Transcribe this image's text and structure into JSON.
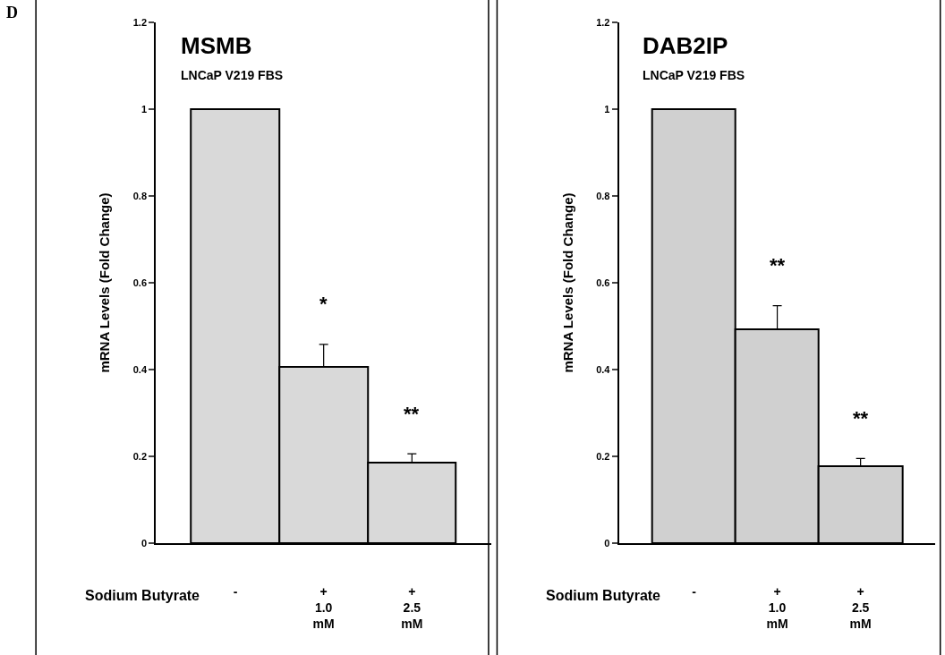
{
  "chart_data": [
    {
      "type": "bar",
      "title": "MSMB",
      "subtitle": "LNCaP V219 FBS",
      "ylabel": "mRNA Levels (Fold Change)",
      "categories": [
        "-",
        "+\n1.0\nmM",
        "+\n2.5\nmM"
      ],
      "values": [
        1,
        0.406,
        0.185
      ],
      "errors": [
        null,
        [
          0.406,
          0.458
        ],
        [
          0.185,
          0.206
        ]
      ],
      "color": "#d9d9d9",
      "ylim": [
        0,
        1.2
      ],
      "yticks": [
        0,
        0.2,
        0.4,
        0.6,
        0.8,
        1,
        1.2
      ],
      "grid": false,
      "legend": false,
      "annotations": [
        "D",
        "Sodium Butyrate",
        "*",
        "**"
      ]
    },
    {
      "type": "bar",
      "title": "DAB2IP",
      "subtitle": "LNCaP V219 FBS",
      "ylabel": "mRNA Levels (Fold Change)",
      "categories": [
        "-",
        "+\n1.0\nmM",
        "+\n2.5\nmM"
      ],
      "values": [
        1,
        0.493,
        0.177
      ],
      "errors": [
        null,
        [
          0.493,
          0.547
        ],
        [
          0.177,
          0.195
        ]
      ],
      "color": "#d0d0d0",
      "ylim": [
        0,
        1.2
      ],
      "yticks": [
        0,
        0.2,
        0.4,
        0.6,
        0.8,
        1,
        1.2
      ],
      "grid": false,
      "legend": false,
      "annotations": [
        "Sodium Butyrate",
        "**",
        "**"
      ]
    }
  ]
}
